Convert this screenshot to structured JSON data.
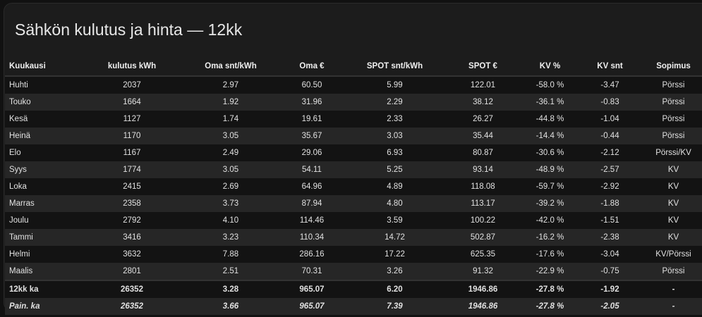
{
  "title": "Sähkön kulutus ja hinta — 12kk",
  "columns": [
    "Kuukausi",
    "kulutus kWh",
    "Oma snt/kWh",
    "Oma €",
    "SPOT snt/kWh",
    "SPOT €",
    "KV %",
    "KV snt",
    "Sopimus"
  ],
  "rows": [
    [
      "Huhti",
      "2037",
      "2.97",
      "60.50",
      "5.99",
      "122.01",
      "-58.0 %",
      "-3.47",
      "Pörssi"
    ],
    [
      "Touko",
      "1664",
      "1.92",
      "31.96",
      "2.29",
      "38.12",
      "-36.1 %",
      "-0.83",
      "Pörssi"
    ],
    [
      "Kesä",
      "1127",
      "1.74",
      "19.61",
      "2.33",
      "26.27",
      "-44.8 %",
      "-1.04",
      "Pörssi"
    ],
    [
      "Heinä",
      "1170",
      "3.05",
      "35.67",
      "3.03",
      "35.44",
      "-14.4 %",
      "-0.44",
      "Pörssi"
    ],
    [
      "Elo",
      "1167",
      "2.49",
      "29.06",
      "6.93",
      "80.87",
      "-30.6 %",
      "-2.12",
      "Pörssi/KV"
    ],
    [
      "Syys",
      "1774",
      "3.05",
      "54.11",
      "5.25",
      "93.14",
      "-48.9 %",
      "-2.57",
      "KV"
    ],
    [
      "Loka",
      "2415",
      "2.69",
      "64.96",
      "4.89",
      "118.08",
      "-59.7 %",
      "-2.92",
      "KV"
    ],
    [
      "Marras",
      "2358",
      "3.73",
      "87.94",
      "4.80",
      "113.17",
      "-39.2 %",
      "-1.88",
      "KV"
    ],
    [
      "Joulu",
      "2792",
      "4.10",
      "114.46",
      "3.59",
      "100.22",
      "-42.0 %",
      "-1.51",
      "KV"
    ],
    [
      "Tammi",
      "3416",
      "3.23",
      "110.34",
      "14.72",
      "502.87",
      "-16.2 %",
      "-2.38",
      "KV"
    ],
    [
      "Helmi",
      "3632",
      "7.88",
      "286.16",
      "17.22",
      "625.35",
      "-17.6 %",
      "-3.04",
      "KV/Pörssi"
    ],
    [
      "Maalis",
      "2801",
      "2.51",
      "70.31",
      "3.26",
      "91.32",
      "-22.9 %",
      "-0.75",
      "Pörssi"
    ]
  ],
  "totals": [
    [
      "12kk ka",
      "26352",
      "3.28",
      "965.07",
      "6.20",
      "1946.86",
      "-27.8 %",
      "-1.92",
      "-"
    ],
    [
      "Pain. ka",
      "26352",
      "3.66",
      "965.07",
      "7.39",
      "1946.86",
      "-27.8 %",
      "-2.05",
      "-"
    ]
  ]
}
